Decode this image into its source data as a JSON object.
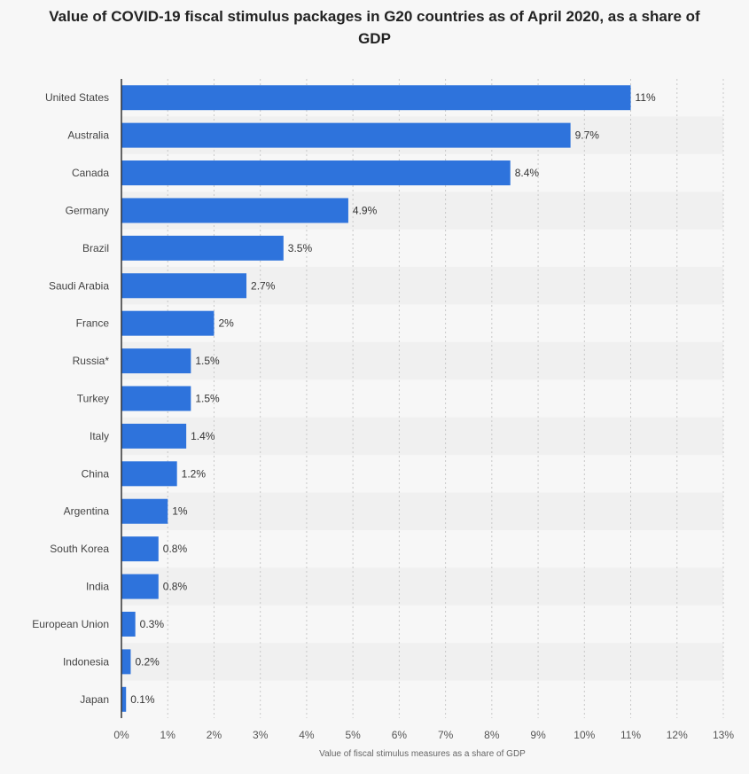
{
  "chart_data": {
    "type": "bar",
    "orientation": "horizontal",
    "title": "Value of COVID-19 fiscal stimulus packages in G20 countries as of April 2020, as a share of GDP",
    "xlabel": "Value of fiscal stimulus measures as a share of GDP",
    "ylabel": "",
    "categories": [
      "United States",
      "Australia",
      "Canada",
      "Germany",
      "Brazil",
      "Saudi Arabia",
      "France",
      "Russia*",
      "Turkey",
      "Italy",
      "China",
      "Argentina",
      "South Korea",
      "India",
      "European Union",
      "Indonesia",
      "Japan"
    ],
    "values": [
      11,
      9.7,
      8.4,
      4.9,
      3.5,
      2.7,
      2,
      1.5,
      1.5,
      1.4,
      1.2,
      1,
      0.8,
      0.8,
      0.3,
      0.2,
      0.1
    ],
    "data_labels": [
      "11%",
      "9.7%",
      "8.4%",
      "4.9%",
      "3.5%",
      "2.7%",
      "2%",
      "1.5%",
      "1.5%",
      "1.4%",
      "1.2%",
      "1%",
      "0.8%",
      "0.8%",
      "0.3%",
      "0.2%",
      "0.1%"
    ],
    "xlim": [
      0,
      13
    ],
    "xticks": [
      "0%",
      "1%",
      "2%",
      "3%",
      "4%",
      "5%",
      "6%",
      "7%",
      "8%",
      "9%",
      "10%",
      "11%",
      "12%",
      "13%"
    ],
    "grid": true,
    "bar_color": "#2e73dc"
  }
}
